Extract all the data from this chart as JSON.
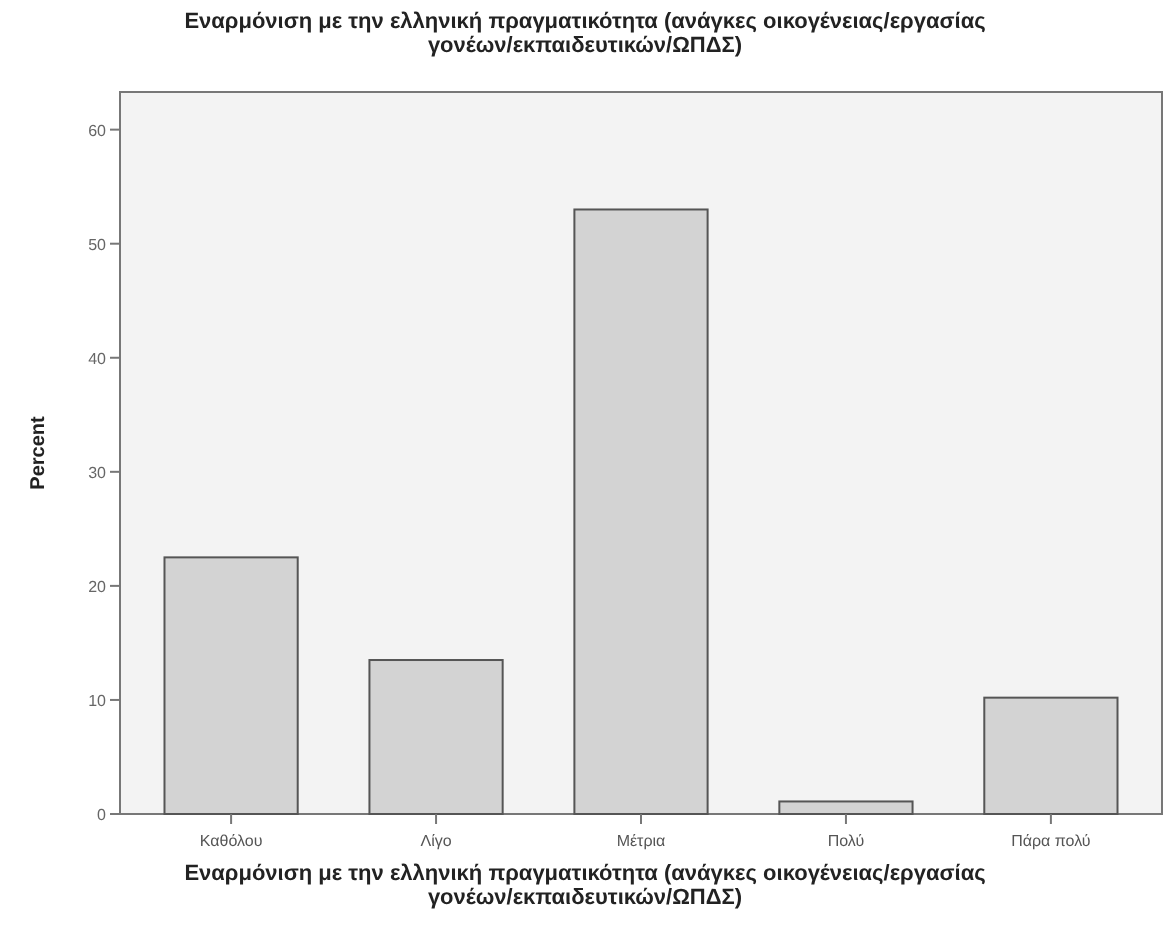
{
  "chart_data": {
    "type": "bar",
    "title": "Εναρμόνιση με την ελληνική πραγματικότητα (ανάγκες οικογένειας/εργασίας γονέων/εκπαιδευτικών/ΩΠΔΣ)",
    "xlabel": "Εναρμόνιση με την ελληνική πραγματικότητα (ανάγκες οικογένειας/εργασίας γονέων/εκπαιδευτικών/ΩΠΔΣ)",
    "ylabel": "Percent",
    "categories": [
      "Καθόλου",
      "Λίγο",
      "Μέτρια",
      "Πολύ",
      "Πάρα πολύ"
    ],
    "values": [
      22.5,
      13.5,
      53,
      1.1,
      10.2
    ],
    "color": "#d3d3d3",
    "ylim": [
      0,
      63.3
    ],
    "yticks": [
      0,
      10,
      20,
      30,
      40,
      50,
      60
    ],
    "grid": false
  }
}
